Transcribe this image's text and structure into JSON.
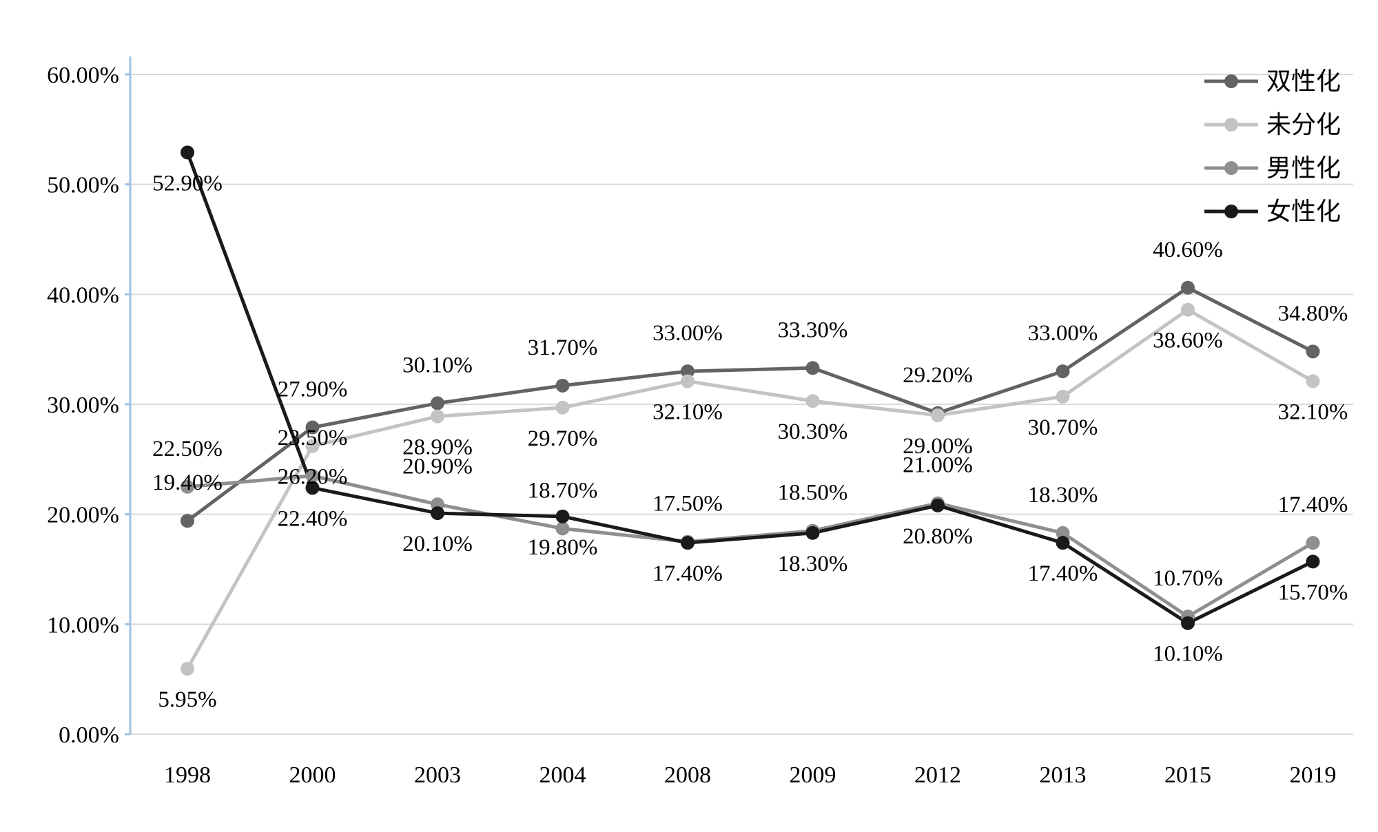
{
  "chart_data": {
    "type": "line",
    "title": "",
    "grid": true,
    "legend_position": "top-right",
    "background_color": "#ffffff",
    "gridline_color": "#d9d9d9",
    "axis_line_color": "#9cc2e5",
    "categories": [
      "1998",
      "2000",
      "2003",
      "2004",
      "2008",
      "2009",
      "2012",
      "2013",
      "2015",
      "2019"
    ],
    "y_axis": {
      "min": 0,
      "max": 60,
      "step": 10,
      "format": "percent",
      "tick_labels": [
        "0.00%",
        "10.00%",
        "20.00%",
        "30.00%",
        "40.00%",
        "50.00%",
        "60.00%"
      ]
    },
    "series": [
      {
        "name": "双性化",
        "color": "#636363",
        "marker": "circle",
        "label_position": "above",
        "values": [
          19.4,
          27.9,
          30.1,
          31.7,
          33.0,
          33.3,
          29.2,
          33.0,
          40.6,
          34.8
        ],
        "labels": [
          "19.40%",
          "27.90%",
          "30.10%",
          "31.70%",
          "33.00%",
          "33.30%",
          "29.20%",
          "33.00%",
          "40.60%",
          "34.80%"
        ]
      },
      {
        "name": "未分化",
        "color": "#c3c3c3",
        "marker": "circle",
        "label_position": "below",
        "values": [
          5.95,
          26.2,
          28.9,
          29.7,
          32.1,
          30.3,
          29.0,
          30.7,
          38.6,
          32.1
        ],
        "labels": [
          "5.95%",
          "26.20%",
          "28.90%",
          "29.70%",
          "32.10%",
          "30.30%",
          "29.00%",
          "30.70%",
          "38.60%",
          "32.10%"
        ]
      },
      {
        "name": "男性化",
        "color": "#8f8f8f",
        "marker": "circle",
        "label_position": "above",
        "values": [
          22.5,
          23.5,
          20.9,
          18.7,
          17.5,
          18.5,
          21.0,
          18.3,
          10.7,
          17.4
        ],
        "labels": [
          "22.50%",
          "23.50%",
          "20.90%",
          "18.70%",
          "17.50%",
          "18.50%",
          "21.00%",
          "18.30%",
          "10.70%",
          "17.40%"
        ]
      },
      {
        "name": "女性化",
        "color": "#1a1a1a",
        "marker": "circle",
        "label_position": "below",
        "values": [
          52.9,
          22.4,
          20.1,
          19.8,
          17.4,
          18.3,
          20.8,
          17.4,
          10.1,
          15.7
        ],
        "labels": [
          "52.90%",
          "22.40%",
          "20.10%",
          "19.80%",
          "17.40%",
          "18.30%",
          "20.80%",
          "17.40%",
          "10.10%",
          "15.70%"
        ]
      }
    ]
  }
}
